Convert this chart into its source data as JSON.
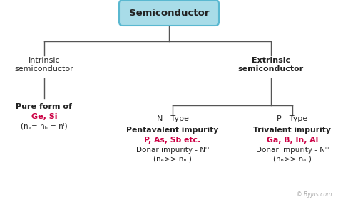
{
  "bg_color": "#ffffff",
  "box_color": "#a8dce8",
  "box_edge_color": "#5ab8d0",
  "line_color": "#555555",
  "text_color_black": "#222222",
  "text_color_red": "#cc0044",
  "watermark": "© Byjus.com",
  "root_label": "Semiconductor",
  "intrinsic_label": "Intrinsic\nsemiconductor",
  "extrinsic_label": "Extrinsic\nsemiconductor",
  "intrinsic_sub_line1": "Pure form of",
  "intrinsic_sub_red": "Ge, Si",
  "intrinsic_sub_line3": "(nₑ= nₕ = nᴵ)",
  "ntype_label": "N - Type",
  "ptype_label": "P - Type",
  "ntype_line1": "Pentavalent impurity",
  "ntype_red": "P, As, Sb etc.",
  "ntype_line3": "Donar impurity - Nᴰ",
  "ntype_line4": "(nₑ>> nₕ )",
  "ptype_line1": "Trivalent impurity",
  "ptype_red": "Ga, B, In, Al",
  "ptype_line3": "Donar impurity - Nᴰ",
  "ptype_line4": "(nₕ>> nₑ )"
}
